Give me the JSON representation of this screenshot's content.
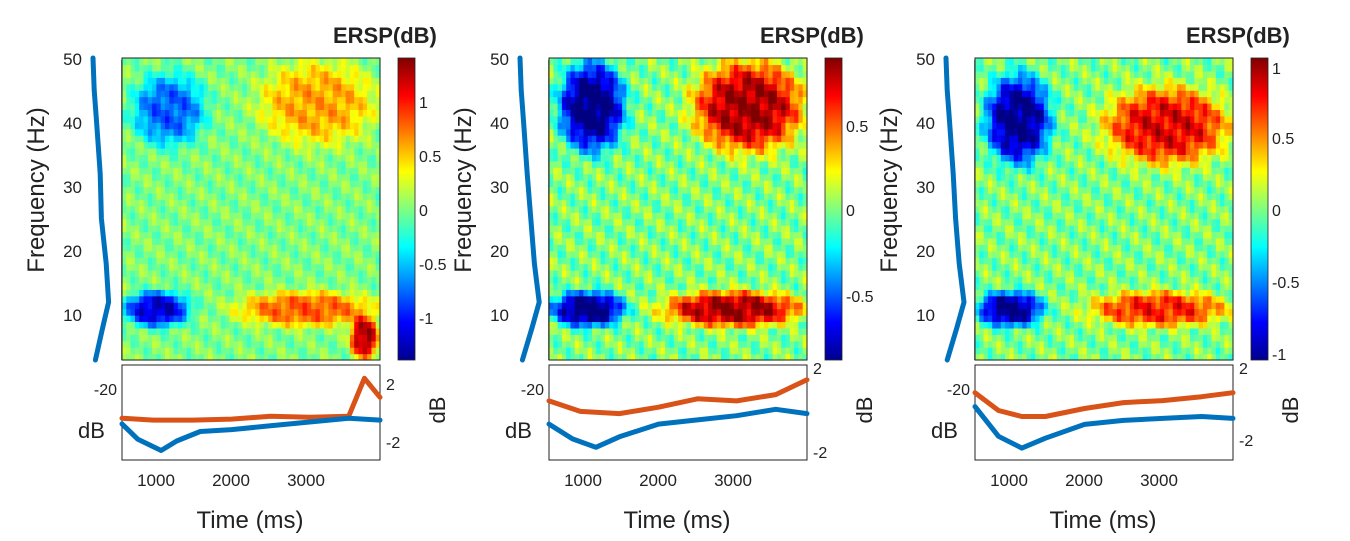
{
  "figure": {
    "panels": [
      {
        "title": "ERSP(dB)",
        "ylabel": "Frequency (Hz)",
        "xlabel": "Time (ms)",
        "yticks": [
          "10",
          "20",
          "30",
          "40",
          "50"
        ],
        "xticks": [
          "1000",
          "2000",
          "3000"
        ],
        "colorbar_ticks": [
          "-1",
          "-0.5",
          "0",
          "0.5",
          "1"
        ],
        "lower_left_label": "dB",
        "lower_left_tick": "-20",
        "lower_right_label": "dB",
        "lower_right_ticks": [
          "2",
          "-2"
        ]
      },
      {
        "title": "ERSP(dB)",
        "ylabel": "Frequency (Hz)",
        "xlabel": "Time (ms)",
        "yticks": [
          "10",
          "20",
          "30",
          "40",
          "50"
        ],
        "xticks": [
          "1000",
          "2000",
          "3000"
        ],
        "colorbar_ticks": [
          "-0.5",
          "0",
          "0.5"
        ],
        "lower_left_label": "dB",
        "lower_left_tick": "-20",
        "lower_right_label": "dB",
        "lower_right_ticks": [
          "2",
          "-2"
        ]
      },
      {
        "title": "ERSP(dB)",
        "ylabel": "Frequency (Hz)",
        "xlabel": "Time (ms)",
        "yticks": [
          "10",
          "20",
          "30",
          "40",
          "50"
        ],
        "xticks": [
          "1000",
          "2000",
          "3000"
        ],
        "colorbar_ticks": [
          "-1",
          "-0.5",
          "0",
          "0.5",
          "1"
        ],
        "lower_left_label": "dB",
        "lower_left_tick": "-20",
        "lower_right_label": "dB",
        "lower_right_ticks": [
          "2",
          "-2"
        ]
      }
    ]
  },
  "chart_data": [
    {
      "type": "heatmap",
      "title": "ERSP(dB)",
      "xlabel": "Time (ms)",
      "ylabel": "Frequency (Hz)",
      "xlim": [
        600,
        3900
      ],
      "ylim": [
        3,
        50
      ],
      "clim": [
        -1.4,
        1.4
      ],
      "colormap": "jet",
      "features": [
        {
          "t": [
            600,
            1500
          ],
          "f": [
            8,
            14
          ],
          "value": -1.2
        },
        {
          "t": [
            700,
            1700
          ],
          "f": [
            36,
            48
          ],
          "value": -0.8
        },
        {
          "t": [
            2000,
            3900
          ],
          "f": [
            8,
            14
          ],
          "value": 0.8
        },
        {
          "t": [
            3500,
            3900
          ],
          "f": [
            3,
            10
          ],
          "value": 1.3
        },
        {
          "t": [
            2300,
            3900
          ],
          "f": [
            36,
            50
          ],
          "value": 0.6
        }
      ],
      "lower_traces": [
        {
          "color": "#d95319",
          "x": [
            600,
            1000,
            1500,
            2000,
            2500,
            3000,
            3500,
            3700,
            3900
          ],
          "y": [
            -0.6,
            -0.7,
            -0.7,
            -0.65,
            -0.5,
            -0.55,
            -0.5,
            1.5,
            0.5
          ]
        },
        {
          "color": "#0072bd",
          "x": [
            600,
            800,
            1100,
            1300,
            1600,
            2000,
            2500,
            3000,
            3500,
            3900
          ],
          "y": [
            -0.9,
            -1.7,
            -2.3,
            -1.8,
            -1.3,
            -1.2,
            -1.0,
            -0.8,
            -0.6,
            -0.7
          ]
        }
      ],
      "lower_ylim": [
        -2.8,
        2.2
      ],
      "baseline_trace": {
        "color": "#0072bd",
        "f": [
          3,
          8,
          12,
          18,
          25,
          32,
          40,
          45,
          50
        ],
        "v": [
          0.1,
          0.4,
          0.65,
          0.55,
          0.35,
          0.3,
          0.15,
          0.05,
          0.0
        ]
      }
    },
    {
      "type": "heatmap",
      "title": "ERSP(dB)",
      "xlabel": "Time (ms)",
      "ylabel": "Frequency (Hz)",
      "xlim": [
        600,
        3900
      ],
      "ylim": [
        3,
        50
      ],
      "clim": [
        -0.95,
        0.95
      ],
      "colormap": "jet",
      "features": [
        {
          "t": [
            600,
            1600
          ],
          "f": [
            8,
            14
          ],
          "value": -1.0
        },
        {
          "t": [
            700,
            1600
          ],
          "f": [
            35,
            50
          ],
          "value": -1.0
        },
        {
          "t": [
            2000,
            3900
          ],
          "f": [
            8,
            14
          ],
          "value": 0.9
        },
        {
          "t": [
            2400,
            3900
          ],
          "f": [
            35,
            50
          ],
          "value": 0.9
        }
      ],
      "lower_traces": [
        {
          "color": "#d95319",
          "x": [
            600,
            1000,
            1500,
            2000,
            2500,
            3000,
            3500,
            3900
          ],
          "y": [
            0.3,
            -0.2,
            -0.3,
            0.0,
            0.4,
            0.3,
            0.6,
            1.3
          ]
        },
        {
          "color": "#0072bd",
          "x": [
            600,
            900,
            1200,
            1500,
            2000,
            2500,
            3000,
            3500,
            3900
          ],
          "y": [
            -0.8,
            -1.5,
            -1.9,
            -1.4,
            -0.8,
            -0.6,
            -0.4,
            -0.1,
            -0.3
          ]
        }
      ],
      "lower_ylim": [
        -2.5,
        2.0
      ],
      "baseline_trace": {
        "color": "#0072bd",
        "f": [
          3,
          8,
          12,
          18,
          25,
          32,
          40,
          45,
          50
        ],
        "v": [
          0.1,
          0.5,
          0.8,
          0.6,
          0.45,
          0.3,
          0.15,
          0.05,
          0.0
        ]
      }
    },
    {
      "type": "heatmap",
      "title": "ERSP(dB)",
      "xlabel": "Time (ms)",
      "ylabel": "Frequency (Hz)",
      "xlim": [
        600,
        3900
      ],
      "ylim": [
        3,
        50
      ],
      "clim": [
        -1.0,
        1.0
      ],
      "colormap": "jet",
      "features": [
        {
          "t": [
            600,
            1500
          ],
          "f": [
            8,
            14
          ],
          "value": -1.0
        },
        {
          "t": [
            700,
            1600
          ],
          "f": [
            33,
            48
          ],
          "value": -1.0
        },
        {
          "t": [
            2000,
            3900
          ],
          "f": [
            8,
            14
          ],
          "value": 0.7
        },
        {
          "t": [
            2200,
            3900
          ],
          "f": [
            33,
            46
          ],
          "value": 0.8
        }
      ],
      "lower_traces": [
        {
          "color": "#d95319",
          "x": [
            600,
            900,
            1200,
            1500,
            2000,
            2500,
            3000,
            3500,
            3900
          ],
          "y": [
            1.0,
            0.1,
            -0.2,
            -0.2,
            0.2,
            0.5,
            0.6,
            0.8,
            1.0
          ]
        },
        {
          "color": "#0072bd",
          "x": [
            600,
            900,
            1200,
            1500,
            2000,
            2500,
            3000,
            3500,
            3900
          ],
          "y": [
            0.3,
            -1.2,
            -1.8,
            -1.3,
            -0.6,
            -0.4,
            -0.3,
            -0.2,
            -0.3
          ]
        }
      ],
      "lower_ylim": [
        -2.4,
        2.4
      ],
      "baseline_trace": {
        "color": "#0072bd",
        "f": [
          3,
          8,
          12,
          18,
          25,
          32,
          40,
          45,
          50
        ],
        "v": [
          0.05,
          0.45,
          0.75,
          0.55,
          0.4,
          0.3,
          0.15,
          0.05,
          0.0
        ]
      }
    }
  ]
}
